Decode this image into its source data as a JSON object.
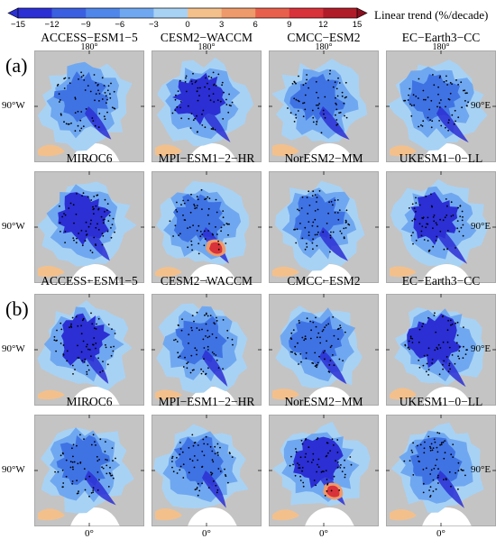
{
  "chart_data": {
    "type": "heatmap",
    "colorbar": {
      "title": "Linear trend (%/decade)",
      "ticks": [
        "−15",
        "−12",
        "−9",
        "−6",
        "−3",
        "0",
        "3",
        "6",
        "9",
        "12",
        "15"
      ],
      "range": [
        -15,
        15
      ],
      "colors": [
        "#2b2fd4",
        "#3a5fe0",
        "#4f86ea",
        "#6fa8f0",
        "#a8d2f4",
        "#f3c08c",
        "#ef9a6a",
        "#e8604c",
        "#d8323a",
        "#b01c28"
      ]
    },
    "groups": [
      {
        "label": "(a)",
        "rows": [
          [
            "ACCESS−ESM1−5",
            "CESM2−WACCM",
            "CMCC−ESM2",
            "EC−Earth3−CC"
          ],
          [
            "MIROC6",
            "MPI−ESM1−2−HR",
            "NorESM2−MM",
            "UKESM1−0−LL"
          ]
        ]
      },
      {
        "label": "(b)",
        "rows": [
          [
            "ACCESS−ESM1−5",
            "CESM2−WACCM",
            "CMCC−ESM2",
            "EC−Earth3−CC"
          ],
          [
            "MIROC6",
            "MPI−ESM1−2−HR",
            "NorESM2−MM",
            "UKESM1−0−LL"
          ]
        ]
      }
    ],
    "lon_labels": {
      "top": "180°",
      "bottom": "0°",
      "left": "90°W",
      "right": "90°E"
    }
  },
  "colors": {
    "land": "#c4c4c4",
    "light_blue": "#a8d2f4",
    "mid_blue": "#6fa8f0",
    "blue": "#3f73e4",
    "deep_blue": "#2b2fd4",
    "orange": "#f3c08c",
    "red": "#d8323a",
    "white": "#ffffff"
  }
}
